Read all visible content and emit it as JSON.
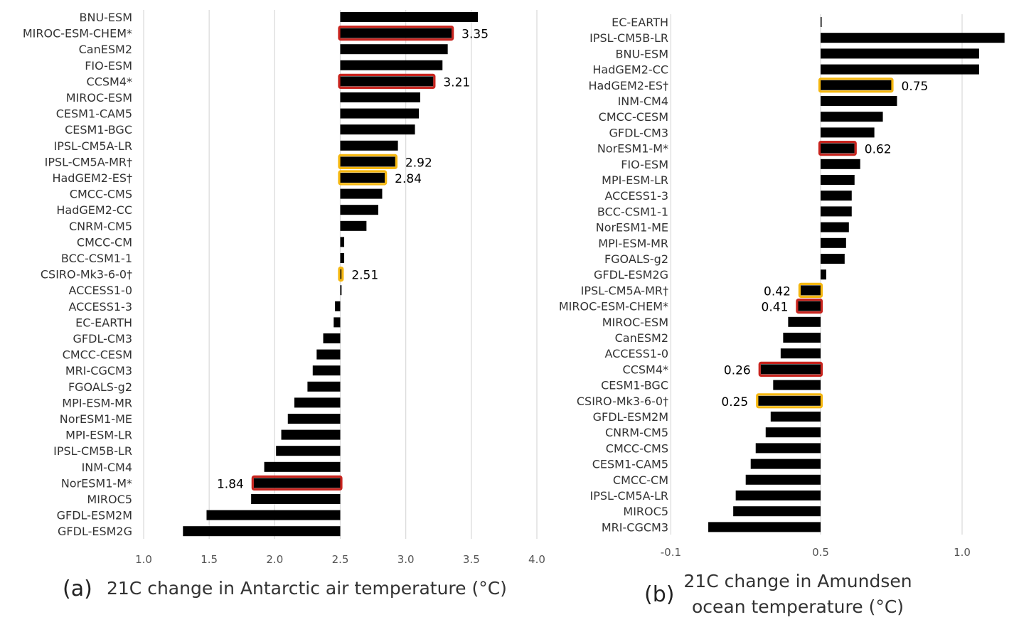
{
  "chart_data": [
    {
      "type": "bar",
      "orientation": "horizontal",
      "panel": "(a)",
      "title": "21C change in Antarctic air temperature (°C)",
      "baseline": 2.5,
      "xlim": [
        1.0,
        4.0
      ],
      "xticks": [
        1.0,
        1.5,
        2.0,
        2.5,
        3.0,
        3.5,
        4.0
      ],
      "xtick_labels": [
        "1.0",
        "1.5",
        "2.0",
        "2.5",
        "3.0",
        "3.5",
        "4.0"
      ],
      "grid": true,
      "bars": [
        {
          "name": "BNU-ESM",
          "value": 3.55
        },
        {
          "name": "MIROC-ESM-CHEM*",
          "value": 3.35,
          "highlight": "red",
          "label": "3.35"
        },
        {
          "name": "CanESM2",
          "value": 3.32
        },
        {
          "name": "FIO-ESM",
          "value": 3.28
        },
        {
          "name": "CCSM4*",
          "value": 3.21,
          "highlight": "red",
          "label": "3.21"
        },
        {
          "name": "MIROC-ESM",
          "value": 3.11
        },
        {
          "name": "CESM1-CAM5",
          "value": 3.1
        },
        {
          "name": "CESM1-BGC",
          "value": 3.07
        },
        {
          "name": "IPSL-CM5A-LR",
          "value": 2.94
        },
        {
          "name": "IPSL-CM5A-MR†",
          "value": 2.92,
          "highlight": "orange",
          "label": "2.92"
        },
        {
          "name": "HadGEM2-ES†",
          "value": 2.84,
          "highlight": "orange",
          "label": "2.84"
        },
        {
          "name": "CMCC-CMS",
          "value": 2.82
        },
        {
          "name": "HadGEM2-CC",
          "value": 2.79
        },
        {
          "name": "CNRM-CM5",
          "value": 2.7
        },
        {
          "name": "CMCC-CM",
          "value": 2.53
        },
        {
          "name": "BCC-CSM1-1",
          "value": 2.53
        },
        {
          "name": "CSIRO-Mk3-6-0†",
          "value": 2.51,
          "highlight": "orange",
          "label": "2.51"
        },
        {
          "name": "ACCESS1-0",
          "value": 2.51
        },
        {
          "name": "ACCESS1-3",
          "value": 2.46
        },
        {
          "name": "EC-EARTH",
          "value": 2.45
        },
        {
          "name": "GFDL-CM3",
          "value": 2.37
        },
        {
          "name": "CMCC-CESM",
          "value": 2.32
        },
        {
          "name": "MRI-CGCM3",
          "value": 2.29
        },
        {
          "name": "FGOALS-g2",
          "value": 2.25
        },
        {
          "name": "MPI-ESM-MR",
          "value": 2.15
        },
        {
          "name": "NorESM1-ME",
          "value": 2.1
        },
        {
          "name": "MPI-ESM-LR",
          "value": 2.05
        },
        {
          "name": "IPSL-CM5B-LR",
          "value": 2.01
        },
        {
          "name": "INM-CM4",
          "value": 1.92
        },
        {
          "name": "NorESM1-M*",
          "value": 1.84,
          "highlight": "red",
          "label": "1.84"
        },
        {
          "name": "MIROC5",
          "value": 1.82
        },
        {
          "name": "GFDL-ESM2M",
          "value": 1.48
        },
        {
          "name": "GFDL-ESM2G",
          "value": 1.3
        }
      ]
    },
    {
      "type": "bar",
      "orientation": "horizontal",
      "panel": "(b)",
      "title": "21C change in Amundsen ocean temperature (°C)",
      "title_lines": [
        "21C change in Amundsen",
        "ocean temperature (°C)"
      ],
      "baseline": 0.5,
      "xlim": [
        -0.1,
        1.15
      ],
      "xticks": [
        -0.1,
        0.5,
        1.0
      ],
      "xtick_labels": [
        "-0.1",
        "0.5",
        "1.0"
      ],
      "grid": true,
      "bars": [
        {
          "name": "EC-EARTH",
          "value": 0.5
        },
        {
          "name": "IPSL-CM5B-LR",
          "value": 1.15
        },
        {
          "name": "BNU-ESM",
          "value": 1.06
        },
        {
          "name": "HadGEM2-CC",
          "value": 1.06
        },
        {
          "name": "HadGEM2-ES†",
          "value": 0.75,
          "highlight": "orange",
          "label": "0.75"
        },
        {
          "name": "INM-CM4",
          "value": 0.77
        },
        {
          "name": "CMCC-CESM",
          "value": 0.72
        },
        {
          "name": "GFDL-CM3",
          "value": 0.69
        },
        {
          "name": "NorESM1-M*",
          "value": 0.62,
          "highlight": "red",
          "label": "0.62"
        },
        {
          "name": "FIO-ESM",
          "value": 0.64
        },
        {
          "name": "MPI-ESM-LR",
          "value": 0.62
        },
        {
          "name": "ACCESS1-3",
          "value": 0.61
        },
        {
          "name": "BCC-CSM1-1",
          "value": 0.61
        },
        {
          "name": "NorESM1-ME",
          "value": 0.6
        },
        {
          "name": "MPI-ESM-MR",
          "value": 0.59
        },
        {
          "name": "FGOALS-g2",
          "value": 0.585
        },
        {
          "name": "GFDL-ESM2G",
          "value": 0.52
        },
        {
          "name": "IPSL-CM5A-MR†",
          "value": 0.42,
          "highlight": "orange",
          "label": "0.42"
        },
        {
          "name": "MIROC-ESM-CHEM*",
          "value": 0.41,
          "highlight": "red",
          "label": "0.41"
        },
        {
          "name": "MIROC-ESM",
          "value": 0.37
        },
        {
          "name": "CanESM2",
          "value": 0.35
        },
        {
          "name": "ACCESS1-0",
          "value": 0.34
        },
        {
          "name": "CCSM4*",
          "value": 0.26,
          "highlight": "red",
          "label": "0.26"
        },
        {
          "name": "CESM1-BGC",
          "value": 0.31
        },
        {
          "name": "CSIRO-Mk3-6-0†",
          "value": 0.25,
          "highlight": "orange",
          "label": "0.25"
        },
        {
          "name": "GFDL-ESM2M",
          "value": 0.3
        },
        {
          "name": "CNRM-CM5",
          "value": 0.28
        },
        {
          "name": "CMCC-CMS",
          "value": 0.24
        },
        {
          "name": "CESM1-CAM5",
          "value": 0.22
        },
        {
          "name": "CMCC-CM",
          "value": 0.2
        },
        {
          "name": "IPSL-CM5A-LR",
          "value": 0.16
        },
        {
          "name": "MIROC5",
          "value": 0.15
        },
        {
          "name": "MRI-CGCM3",
          "value": 0.05
        }
      ]
    }
  ],
  "colors": {
    "bar": "#000000",
    "highlight_red": "#c8241e",
    "highlight_orange": "#f5b70f",
    "grid": "#d9d9d9",
    "text": "#333333"
  }
}
